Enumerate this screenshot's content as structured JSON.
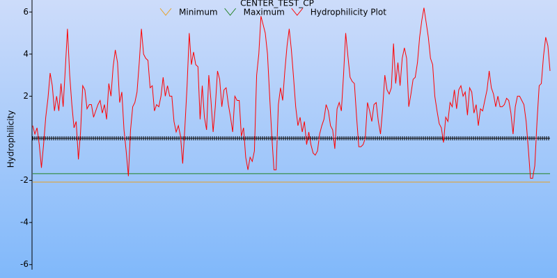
{
  "chart_data": {
    "type": "line",
    "title": "CENTER_TEST_CP",
    "y_label": "Hydrophilicity",
    "ylim": [
      -6.24,
      6.57
    ],
    "yticks": [
      6,
      4,
      2,
      -2,
      -4,
      -6
    ],
    "reference_lines": [
      {
        "name": "Minimum",
        "color": "#e8a020",
        "value": -2.08
      },
      {
        "name": "Maximum",
        "color": "#208020",
        "value": -1.68
      },
      {
        "color": "#000000",
        "value": 0,
        "marker": "+"
      }
    ],
    "series": [
      {
        "name": "Hydrophilicity Plot",
        "color": "#ff0000",
        "values": [
          0.6,
          0.2,
          0.5,
          -0.3,
          -1.4,
          -0.3,
          1,
          1.9,
          3.1,
          2.5,
          1.3,
          2,
          1.3,
          2.6,
          1.5,
          3.3,
          5.2,
          3,
          1.6,
          0.5,
          0.8,
          -1,
          0.3,
          2.5,
          2.3,
          1.4,
          1.6,
          1.6,
          1,
          1.3,
          1.6,
          1.8,
          1.2,
          1.6,
          0.9,
          2.6,
          2,
          3.4,
          4.2,
          3.6,
          1.7,
          2.2,
          0.4,
          -0.6,
          -1.8,
          0.4,
          1.5,
          1.7,
          2.2,
          3.6,
          5.2,
          4,
          3.8,
          3.7,
          2.4,
          2.5,
          1.3,
          1.6,
          1.5,
          2,
          2.9,
          2,
          2.5,
          2,
          2,
          0.8,
          0.3,
          0.6,
          0.1,
          -1.2,
          0.5,
          2.5,
          5,
          3.5,
          4.1,
          3.5,
          3.4,
          0.9,
          2.5,
          1,
          0.4,
          3,
          1.8,
          0.3,
          1.5,
          3.2,
          2.8,
          1.5,
          2.3,
          2.4,
          1.6,
          1,
          0.3,
          2,
          1.8,
          1.8,
          0.1,
          0.5,
          -0.9,
          -1.5,
          -0.9,
          -1.1,
          -0.6,
          3,
          4,
          5.8,
          5.4,
          5,
          4,
          2,
          0.1,
          -1.5,
          -1.5,
          1.6,
          2.4,
          1.8,
          3.2,
          4.4,
          5.2,
          4.2,
          2.9,
          1.5,
          0.6,
          1,
          0.3,
          0.8,
          -0.3,
          0.3,
          -0.3,
          -0.7,
          -0.8,
          -0.6,
          0.2,
          0.6,
          0.9,
          1.6,
          1.3,
          0.6,
          0.4,
          -0.5,
          1.4,
          1.7,
          1.3,
          3,
          5,
          3.9,
          2.9,
          2.7,
          2.6,
          1,
          -0.4,
          -0.4,
          -0.3,
          0,
          1.7,
          1.3,
          0.8,
          1.6,
          1.7,
          0.8,
          0.2,
          1.4,
          3,
          2.3,
          2.1,
          2.4,
          4.5,
          2.6,
          3.6,
          2.5,
          3.8,
          4.3,
          3.8,
          1.5,
          2.1,
          2.8,
          2.9,
          3.6,
          4.8,
          5.6,
          6.2,
          5.5,
          4.8,
          3.8,
          3.5,
          2,
          1.3,
          0.7,
          0.5,
          -0.2,
          1,
          0.8,
          1.7,
          1.5,
          2.3,
          1.4,
          2.3,
          2.5,
          2,
          2.2,
          1.1,
          2.4,
          2.2,
          1.2,
          1.6,
          0.6,
          1.4,
          1.3,
          1.8,
          2.3,
          3.2,
          2.4,
          2.1,
          1.5,
          2,
          1.5,
          1.5,
          1.6,
          1.9,
          1.8,
          1.2,
          0.2,
          1.5,
          2,
          2,
          1.8,
          1.6,
          0.8,
          -0.5,
          -1.9,
          -1.9,
          -1.3,
          0.8,
          2.5,
          2.6,
          3.9,
          4.8,
          4.4,
          3.2
        ]
      }
    ]
  }
}
